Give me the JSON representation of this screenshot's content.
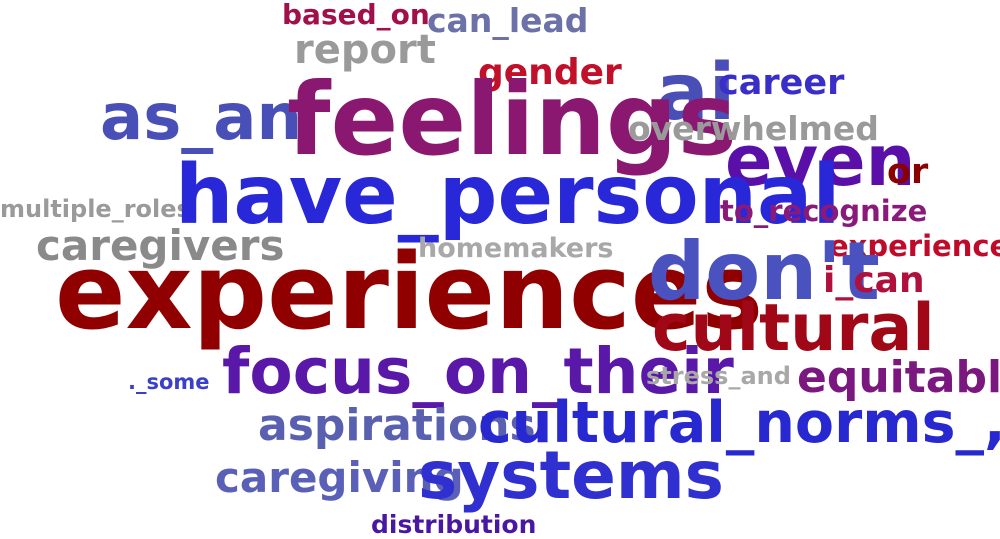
{
  "word_cloud": {
    "words": [
      {
        "text": "based_on",
        "color": "#a0104a"
      },
      {
        "text": "can_lead",
        "color": "#6c72a8"
      },
      {
        "text": "report",
        "color": "#9a9a9a"
      },
      {
        "text": "gender",
        "color": "#c0102a"
      },
      {
        "text": "ai",
        "color": "#4a4fb8"
      },
      {
        "text": "career",
        "color": "#3a2ec8"
      },
      {
        "text": "as_an",
        "color": "#4850b8"
      },
      {
        "text": "feelings",
        "color": "#8a1870"
      },
      {
        "text": "overwhelmed",
        "color": "#9a9a9a"
      },
      {
        "text": "even",
        "color": "#5a10a8"
      },
      {
        "text": "or",
        "color": "#8a0000"
      },
      {
        "text": "multiple_roles",
        "color": "#9a9a9a"
      },
      {
        "text": "have_personal",
        "color": "#2828d8"
      },
      {
        "text": "to_recognize",
        "color": "#8a1a7a"
      },
      {
        "text": "caregivers",
        "color": "#8a8a8a"
      },
      {
        "text": "homemakers",
        "color": "#a8a8a8"
      },
      {
        "text": "experience",
        "color": "#c00a2a"
      },
      {
        "text": "experiences",
        "color": "#900000"
      },
      {
        "text": "don't",
        "color": "#4a52c0"
      },
      {
        "text": "i_can",
        "color": "#b0103c"
      },
      {
        "text": "cultural",
        "color": "#a00818"
      },
      {
        "text": "._some",
        "color": "#3a40c8"
      },
      {
        "text": "focus_on_their",
        "color": "#5a18a8"
      },
      {
        "text": "stress_and",
        "color": "#a8a8a8"
      },
      {
        "text": "equitable",
        "color": "#7a1880"
      },
      {
        "text": "aspirations",
        "color": "#5a60b0"
      },
      {
        "text": "cultural_norms_,",
        "color": "#2828d0"
      },
      {
        "text": "caregiving",
        "color": "#5a60b8"
      },
      {
        "text": "systems",
        "color": "#3030d0"
      },
      {
        "text": "distribution",
        "color": "#4a18a0"
      }
    ]
  }
}
